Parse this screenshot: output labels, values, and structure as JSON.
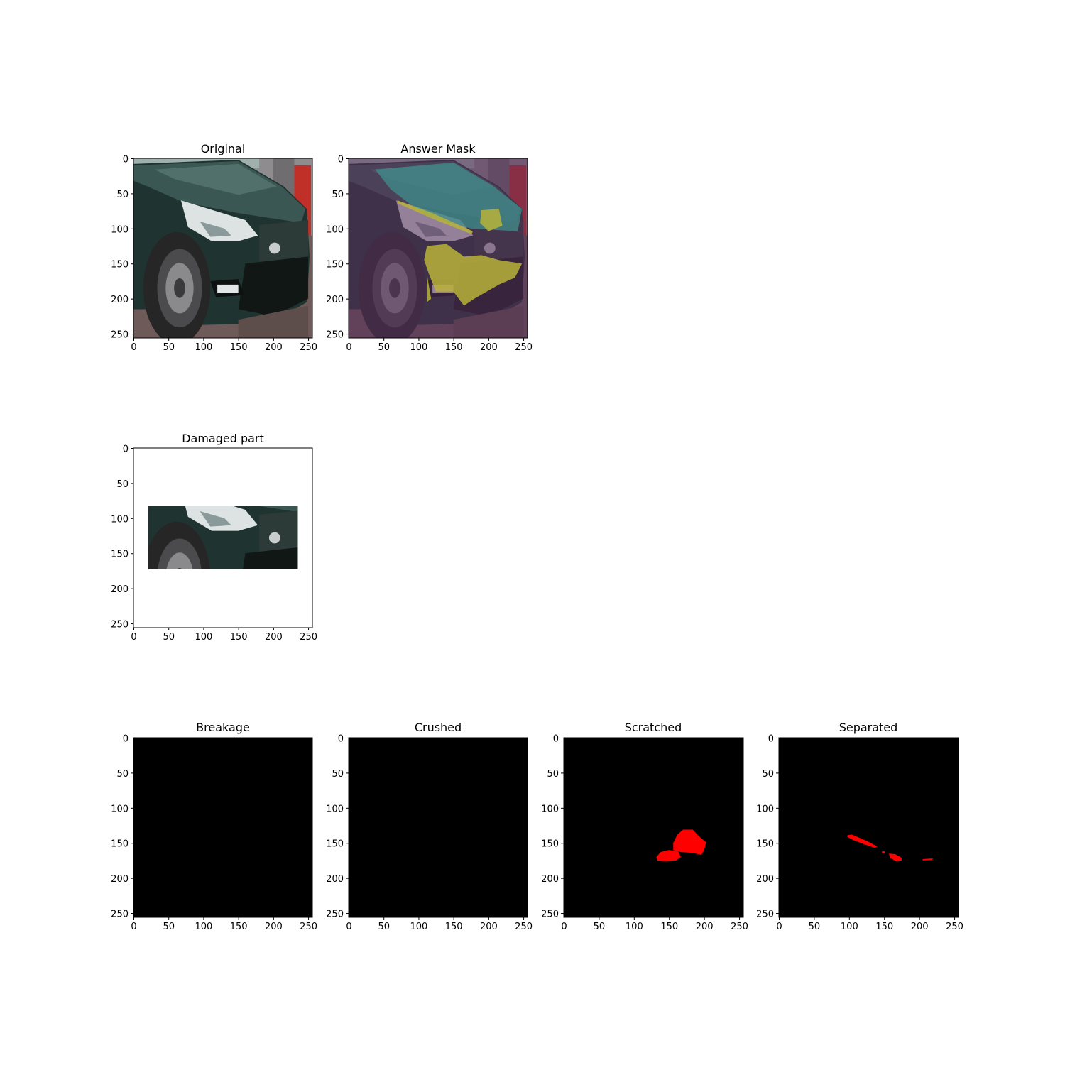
{
  "chart_data": [
    {
      "type": "image",
      "title": "Original",
      "xlim": [
        0,
        256
      ],
      "ylim": [
        256,
        0
      ],
      "xticks": [
        0,
        50,
        100,
        150,
        200,
        250
      ],
      "yticks": [
        0,
        50,
        100,
        150,
        200,
        250
      ],
      "content": "photo of dark green SUV with damaged front bumper",
      "colors": {
        "ground": "#6e5a58",
        "body": "#1f3431",
        "hood": "#3b5753",
        "tire": "#262626",
        "headlight": "#dde2e2",
        "wall": "#8e8c8e",
        "red_wall": "#c03028"
      }
    },
    {
      "type": "image",
      "title": "Answer Mask",
      "xlim": [
        0,
        256
      ],
      "ylim": [
        256,
        0
      ],
      "xticks": [
        0,
        50,
        100,
        150,
        200,
        250
      ],
      "yticks": [
        0,
        50,
        100,
        150,
        200,
        250
      ],
      "content": "photo overlaid with segmentation mask",
      "colors": {
        "background_overlay": "#5a2f5c",
        "part_overlay": "#3f8f8c",
        "damage_overlay": "#b9b33a"
      }
    },
    {
      "type": "image",
      "title": "Damaged part",
      "xlim": [
        0,
        256
      ],
      "ylim": [
        256,
        0
      ],
      "xticks": [
        0,
        50,
        100,
        150,
        200,
        250
      ],
      "yticks": [
        0,
        50,
        100,
        150,
        200,
        250
      ],
      "crop": {
        "x": [
          21,
          235
        ],
        "y": [
          83,
          174
        ]
      },
      "content": "cropped hood region"
    },
    {
      "type": "image",
      "title": "Breakage",
      "xlim": [
        0,
        256
      ],
      "ylim": [
        256,
        0
      ],
      "xticks": [
        0,
        50,
        100,
        150,
        200,
        250
      ],
      "yticks": [
        0,
        50,
        100,
        150,
        200,
        250
      ],
      "mask_regions": []
    },
    {
      "type": "image",
      "title": "Crushed",
      "xlim": [
        0,
        256
      ],
      "ylim": [
        256,
        0
      ],
      "xticks": [
        0,
        50,
        100,
        150,
        200,
        250
      ],
      "yticks": [
        0,
        50,
        100,
        150,
        200,
        250
      ],
      "mask_regions": []
    },
    {
      "type": "image",
      "title": "Scratched",
      "xlim": [
        0,
        256
      ],
      "ylim": [
        256,
        0
      ],
      "xticks": [
        0,
        50,
        100,
        150,
        200,
        250
      ],
      "yticks": [
        0,
        50,
        100,
        150,
        200,
        250
      ],
      "mask_regions": [
        [
          [
            156,
            150
          ],
          [
            162,
            138
          ],
          [
            170,
            131
          ],
          [
            184,
            131
          ],
          [
            192,
            140
          ],
          [
            203,
            149
          ],
          [
            200,
            160
          ],
          [
            196,
            167
          ],
          [
            183,
            164
          ],
          [
            167,
            163
          ],
          [
            156,
            160
          ]
        ],
        [
          [
            132,
            170
          ],
          [
            138,
            163
          ],
          [
            150,
            160
          ],
          [
            163,
            162
          ],
          [
            167,
            170
          ],
          [
            160,
            175
          ],
          [
            144,
            176
          ],
          [
            133,
            175
          ]
        ]
      ]
    },
    {
      "type": "image",
      "title": "Separated",
      "xlim": [
        0,
        256
      ],
      "ylim": [
        256,
        0
      ],
      "xticks": [
        0,
        50,
        100,
        150,
        200,
        250
      ],
      "yticks": [
        0,
        50,
        100,
        150,
        200,
        250
      ],
      "mask_regions": [
        [
          [
            98,
            139
          ],
          [
            104,
            138
          ],
          [
            125,
            147
          ],
          [
            140,
            155
          ],
          [
            137,
            157
          ],
          [
            122,
            152
          ],
          [
            104,
            145
          ],
          [
            97,
            141
          ]
        ],
        [
          [
            157,
            165
          ],
          [
            166,
            166
          ],
          [
            175,
            171
          ],
          [
            175,
            175
          ],
          [
            167,
            176
          ],
          [
            158,
            171
          ]
        ],
        [
          [
            147,
            162
          ],
          [
            151,
            162
          ],
          [
            151,
            165
          ],
          [
            147,
            165
          ]
        ],
        [
          [
            205,
            173
          ],
          [
            220,
            172
          ],
          [
            218,
            174
          ],
          [
            205,
            175
          ]
        ]
      ]
    }
  ],
  "colors": {
    "mask_fill": "#ff0000",
    "mask_background": "#000000"
  }
}
